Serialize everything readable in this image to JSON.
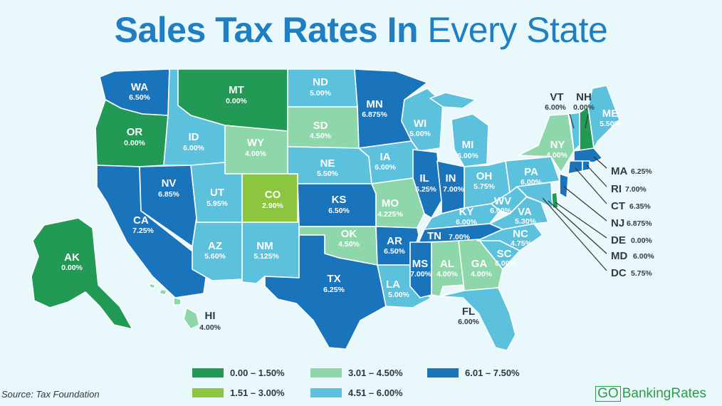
{
  "title": {
    "bold": "Sales Tax Rates In",
    "light": "Every State"
  },
  "source": "Source: Tax Foundation",
  "brand": {
    "go": "GO",
    "rest": "BankingRates"
  },
  "colors": {
    "bin1": "#229a55",
    "bin2": "#8cc63f",
    "bin3": "#8ed7ab",
    "bin4": "#5bc1dc",
    "bin5": "#1a74bb",
    "background": "#e9f8fb",
    "title": "#1f7fc2"
  },
  "legend": [
    {
      "label": "0.00 – 1.50%",
      "color": "#229a55"
    },
    {
      "label": "3.01 – 4.50%",
      "color": "#8ed7ab"
    },
    {
      "label": "6.01 – 7.50%",
      "color": "#1a74bb"
    },
    {
      "label": "1.51 – 3.00%",
      "color": "#8cc63f"
    },
    {
      "label": "4.51 – 6.00%",
      "color": "#5bc1dc"
    }
  ],
  "states": {
    "WA": {
      "abbr": "WA",
      "rate": "6.50%"
    },
    "OR": {
      "abbr": "OR",
      "rate": "0.00%"
    },
    "CA": {
      "abbr": "CA",
      "rate": "7.25%"
    },
    "NV": {
      "abbr": "NV",
      "rate": "6.85%"
    },
    "ID": {
      "abbr": "ID",
      "rate": "6.00%"
    },
    "MT": {
      "abbr": "MT",
      "rate": "0.00%"
    },
    "WY": {
      "abbr": "WY",
      "rate": "4.00%"
    },
    "UT": {
      "abbr": "UT",
      "rate": "5.95%"
    },
    "AZ": {
      "abbr": "AZ",
      "rate": "5.60%"
    },
    "CO": {
      "abbr": "CO",
      "rate": "2.90%"
    },
    "NM": {
      "abbr": "NM",
      "rate": "5.125%"
    },
    "ND": {
      "abbr": "ND",
      "rate": "5.00%"
    },
    "SD": {
      "abbr": "SD",
      "rate": "4.50%"
    },
    "NE": {
      "abbr": "NE",
      "rate": "5.50%"
    },
    "KS": {
      "abbr": "KS",
      "rate": "6.50%"
    },
    "OK": {
      "abbr": "OK",
      "rate": "4.50%"
    },
    "TX": {
      "abbr": "TX",
      "rate": "6.25%"
    },
    "MN": {
      "abbr": "MN",
      "rate": "6.875%"
    },
    "IA": {
      "abbr": "IA",
      "rate": "6.00%"
    },
    "MO": {
      "abbr": "MO",
      "rate": "4.225%"
    },
    "AR": {
      "abbr": "AR",
      "rate": "6.50%"
    },
    "LA": {
      "abbr": "LA",
      "rate": "5.00%"
    },
    "WI": {
      "abbr": "WI",
      "rate": "5.00%"
    },
    "IL": {
      "abbr": "IL",
      "rate": "6.25%"
    },
    "MI": {
      "abbr": "MI",
      "rate": "6.00%"
    },
    "IN": {
      "abbr": "IN",
      "rate": "7.00%"
    },
    "OH": {
      "abbr": "OH",
      "rate": "5.75%"
    },
    "KY": {
      "abbr": "KY",
      "rate": "6.00%"
    },
    "TN": {
      "abbr": "TN",
      "rate": "7.00%"
    },
    "MS": {
      "abbr": "MS",
      "rate": "7.00%"
    },
    "AL": {
      "abbr": "AL",
      "rate": "4.00%"
    },
    "GA": {
      "abbr": "GA",
      "rate": "4.00%"
    },
    "FL": {
      "abbr": "FL",
      "rate": "6.00%"
    },
    "SC": {
      "abbr": "SC",
      "rate": "6.00%"
    },
    "NC": {
      "abbr": "NC",
      "rate": "4.75%"
    },
    "VA": {
      "abbr": "VA",
      "rate": "5.30%"
    },
    "WV": {
      "abbr": "WV",
      "rate": "6.00%"
    },
    "PA": {
      "abbr": "PA",
      "rate": "6.00%"
    },
    "NY": {
      "abbr": "NY",
      "rate": "4.00%"
    },
    "VT": {
      "abbr": "VT",
      "rate": "6.00%"
    },
    "NH": {
      "abbr": "NH",
      "rate": "0.00%"
    },
    "ME": {
      "abbr": "ME",
      "rate": "5.50%"
    },
    "MA": {
      "abbr": "MA",
      "rate": "6.25%"
    },
    "RI": {
      "abbr": "RI",
      "rate": "7.00%"
    },
    "CT": {
      "abbr": "CT",
      "rate": "6.35%"
    },
    "NJ": {
      "abbr": "NJ",
      "rate": "6.875%"
    },
    "DE": {
      "abbr": "DE",
      "rate": "0.00%"
    },
    "MD": {
      "abbr": "MD",
      "rate": "6.00%"
    },
    "DC": {
      "abbr": "DC",
      "rate": "5.75%"
    },
    "AK": {
      "abbr": "AK",
      "rate": "0.00%"
    },
    "HI": {
      "abbr": "HI",
      "rate": "4.00%"
    }
  }
}
